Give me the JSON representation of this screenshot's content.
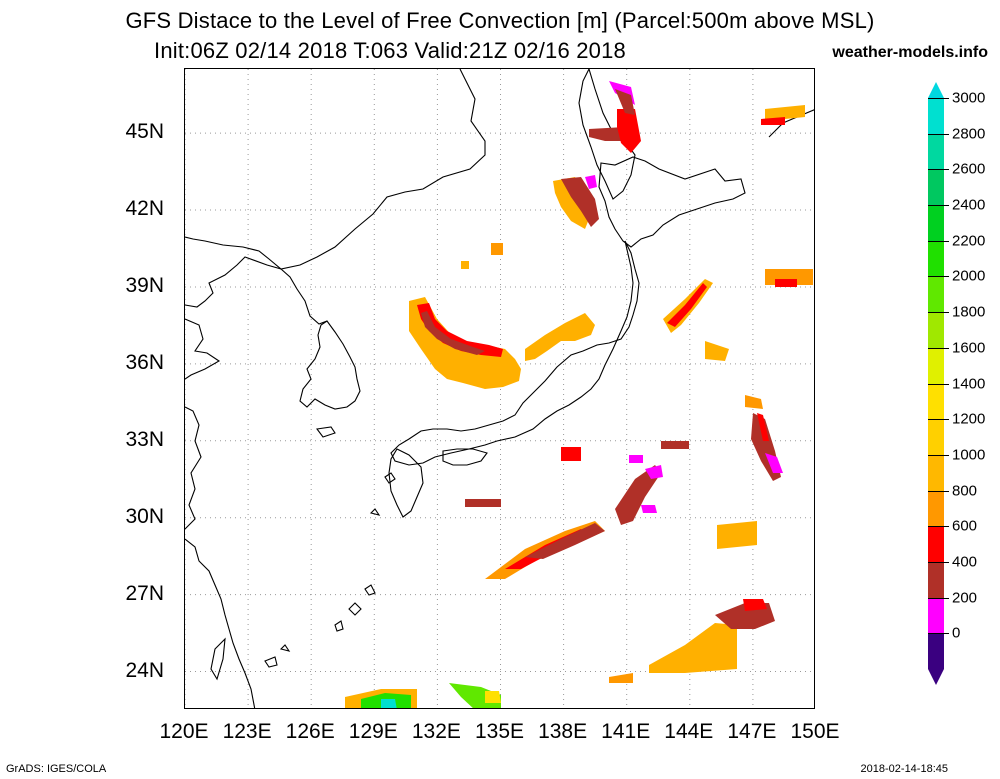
{
  "title": {
    "line1": "GFS Distace to the Level of Free Convection [m] (Parcel:500m above MSL)",
    "line2": "Init:06Z 02/14 2018 T:063 Valid:21Z 02/16 2018",
    "site": "weather-models.info"
  },
  "map": {
    "lat_labels": [
      "45N",
      "42N",
      "39N",
      "36N",
      "33N",
      "30N",
      "27N",
      "24N"
    ],
    "lon_labels": [
      "120E",
      "123E",
      "126E",
      "129E",
      "132E",
      "135E",
      "138E",
      "141E",
      "144E",
      "147E",
      "150E"
    ],
    "lat_values": [
      45,
      42,
      39,
      36,
      33,
      30,
      27,
      24
    ],
    "lon_values": [
      120,
      123,
      126,
      129,
      132,
      135,
      138,
      141,
      144,
      147,
      150
    ],
    "lat_range": [
      22.5,
      47.5
    ],
    "lon_range": [
      120,
      150
    ],
    "grid": "dotted"
  },
  "colorbar": {
    "labels": [
      "3000",
      "2800",
      "2600",
      "2400",
      "2200",
      "2000",
      "1800",
      "1600",
      "1400",
      "1200",
      "1000",
      "800",
      "600",
      "400",
      "200",
      "0"
    ],
    "colors": [
      "#00e0d0",
      "#00d8a0",
      "#00c860",
      "#00d020",
      "#20e000",
      "#60e800",
      "#a0e800",
      "#e0f000",
      "#ffe000",
      "#ffd000",
      "#ffb800",
      "#ff9800",
      "#ff0000",
      "#b03028",
      "#ff00ff",
      "#3a0080"
    ]
  },
  "footer": {
    "left": "GrADS: IGES/COLA",
    "right": "2018-02-14-18:45"
  }
}
